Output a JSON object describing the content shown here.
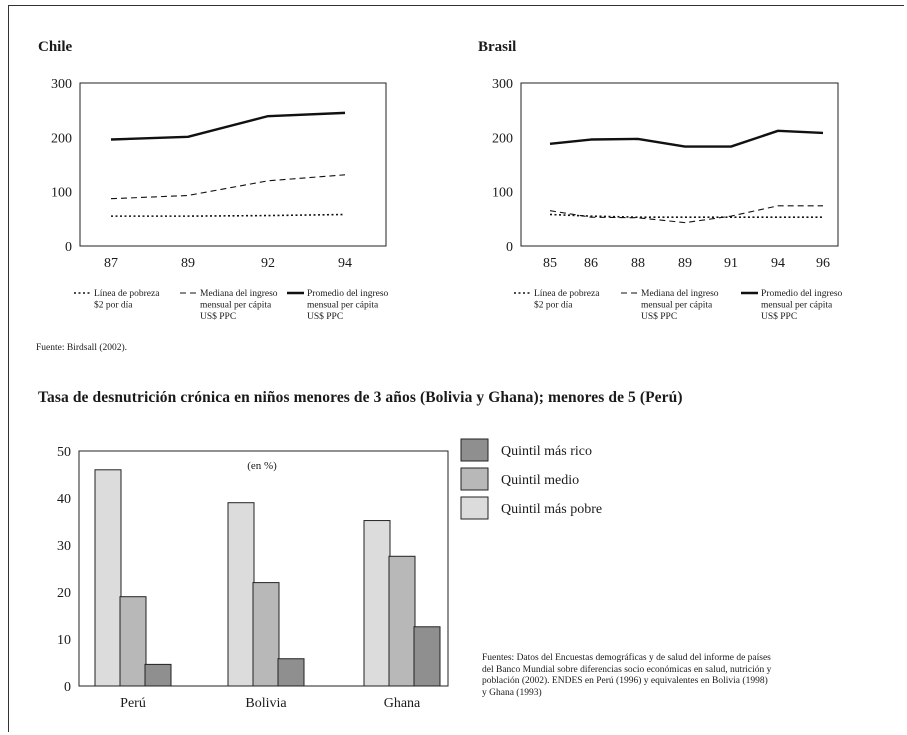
{
  "chile": {
    "title": "Chile",
    "chart_data": {
      "type": "line",
      "categories": [
        "87",
        "89",
        "92",
        "94"
      ],
      "ylim": [
        0,
        300
      ],
      "yticks": [
        0,
        100,
        200,
        300
      ],
      "series": [
        {
          "name": "Línea de pobreza\n$2 por día",
          "style": "dotted",
          "values": [
            55,
            55,
            56,
            58
          ]
        },
        {
          "name": "Mediana del ingreso\nmensual per cápita\nUS$ PPC",
          "style": "dashed",
          "values": [
            87,
            93,
            120,
            131
          ]
        },
        {
          "name": "Promedio del ingreso\nmensual per cápita\nUS$ PPC",
          "style": "solid",
          "values": [
            196,
            201,
            239,
            245
          ]
        }
      ]
    }
  },
  "brasil": {
    "title": "Brasil",
    "chart_data": {
      "type": "line",
      "categories": [
        "85",
        "86",
        "88",
        "89",
        "91",
        "94",
        "96"
      ],
      "ylim": [
        0,
        300
      ],
      "yticks": [
        0,
        100,
        200,
        300
      ],
      "series": [
        {
          "name": "Línea de pobreza\n$2 por día",
          "style": "dotted",
          "values": [
            58,
            55,
            53,
            53,
            53,
            53,
            53
          ]
        },
        {
          "name": "Mediana del ingreso\nmensual per cápita\nUS$ PPC",
          "style": "dashed",
          "values": [
            65,
            53,
            52,
            43,
            55,
            74,
            74
          ]
        },
        {
          "name": "Promedio del ingreso\nmensual per cápita\nUS$ PPC",
          "style": "solid",
          "values": [
            188,
            196,
            197,
            183,
            183,
            212,
            208
          ]
        }
      ]
    }
  },
  "source_top": "Fuente: Birdsall (2002).",
  "section_title": "Tasa de desnutrición crónica en niños menores de 3 años (Bolivia y Ghana); menores de 5 (Perú)",
  "bar": {
    "chart_data": {
      "type": "bar",
      "subtitle": "(en %)",
      "categories": [
        "Perú",
        "Bolivia",
        "Ghana"
      ],
      "ylim": [
        0,
        50
      ],
      "yticks": [
        0,
        10,
        20,
        30,
        40,
        50
      ],
      "series": [
        {
          "name": "Quintil más pobre",
          "color": "#dcdcdc",
          "values": [
            46,
            39,
            35.2
          ]
        },
        {
          "name": "Quintil medio",
          "color": "#b8b8b8",
          "values": [
            19,
            22,
            27.6
          ]
        },
        {
          "name": "Quintil más rico",
          "color": "#8f8f8f",
          "values": [
            4.6,
            5.8,
            12.6
          ]
        }
      ],
      "legend_order": [
        2,
        1,
        0
      ]
    }
  },
  "notes": [
    "Fuentes: Datos del Encuestas demográficas y de salud del informe de países",
    "del Banco Mundial sobre diferencias socio económicas en salud, nutrición y",
    "población (2002). ENDES en Perú (1996) y equivalentes en Bolivia (1998)",
    "y Ghana (1993)"
  ]
}
